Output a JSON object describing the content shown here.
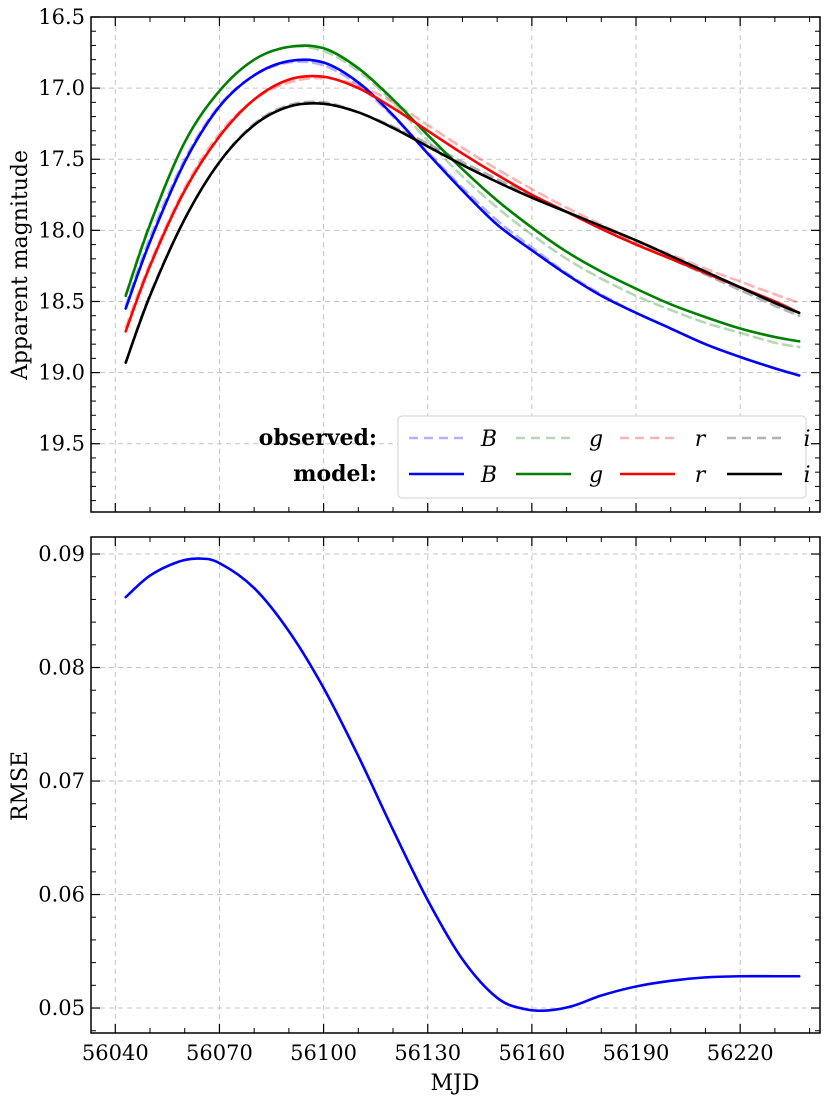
{
  "chart_data": [
    {
      "type": "line",
      "panel": "top",
      "xlabel": "",
      "ylabel": "Apparent magnitude",
      "xlim": [
        56033,
        56243
      ],
      "ylim": [
        19.98,
        16.5
      ],
      "y_inverted": true,
      "xticks": [
        56040,
        56070,
        56100,
        56130,
        56160,
        56190,
        56220
      ],
      "xticks_labeled": false,
      "yticks": [
        16.5,
        17.0,
        17.5,
        18.0,
        18.5,
        19.0,
        19.5
      ],
      "ytick_labels": [
        "16.5",
        "17.0",
        "17.5",
        "18.0",
        "18.5",
        "19.0",
        "19.5"
      ],
      "grid": true,
      "legend": {
        "placement": "lower-right",
        "row_labels": [
          "observed:",
          "model:"
        ],
        "bands": [
          "B",
          "g",
          "r",
          "i"
        ]
      },
      "x": [
        56043,
        56050,
        56060,
        56070,
        56080,
        56090,
        56100,
        56110,
        56120,
        56130,
        56140,
        56150,
        56160,
        56170,
        56180,
        56190,
        56200,
        56210,
        56220,
        56230,
        56237
      ],
      "series": [
        {
          "name": "B",
          "kind": "observed",
          "color": "#0000ff",
          "values": [
            18.53,
            18.05,
            17.5,
            17.12,
            16.91,
            16.82,
            16.84,
            16.98,
            17.2,
            17.45,
            17.7,
            17.93,
            18.12,
            18.3,
            18.45,
            18.58,
            18.69,
            18.8,
            18.89,
            18.97,
            19.02
          ]
        },
        {
          "name": "g",
          "kind": "observed",
          "color": "#008000",
          "values": [
            18.45,
            17.95,
            17.38,
            17.02,
            16.8,
            16.71,
            16.74,
            16.88,
            17.1,
            17.37,
            17.62,
            17.84,
            18.03,
            18.2,
            18.34,
            18.46,
            18.56,
            18.65,
            18.72,
            18.79,
            18.82
          ]
        },
        {
          "name": "r",
          "kind": "observed",
          "color": "#ff0000",
          "values": [
            18.68,
            18.23,
            17.7,
            17.32,
            17.08,
            16.96,
            16.93,
            16.98,
            17.1,
            17.26,
            17.42,
            17.57,
            17.71,
            17.84,
            17.96,
            18.07,
            18.17,
            18.27,
            18.36,
            18.45,
            18.51
          ]
        },
        {
          "name": "i",
          "kind": "observed",
          "color": "#000000",
          "values": [
            18.93,
            18.45,
            17.92,
            17.52,
            17.25,
            17.12,
            17.1,
            17.17,
            17.27,
            17.39,
            17.52,
            17.64,
            17.76,
            17.87,
            17.98,
            18.09,
            18.2,
            18.31,
            18.42,
            18.53,
            18.6
          ]
        },
        {
          "name": "B",
          "kind": "model",
          "color": "#0000ff",
          "values": [
            18.55,
            18.08,
            17.52,
            17.13,
            16.91,
            16.81,
            16.82,
            16.96,
            17.19,
            17.46,
            17.72,
            17.96,
            18.14,
            18.31,
            18.46,
            18.58,
            18.69,
            18.8,
            18.89,
            18.97,
            19.02
          ]
        },
        {
          "name": "g",
          "kind": "model",
          "color": "#008000",
          "values": [
            18.46,
            17.96,
            17.38,
            17.02,
            16.8,
            16.71,
            16.72,
            16.86,
            17.08,
            17.33,
            17.57,
            17.79,
            17.98,
            18.15,
            18.29,
            18.41,
            18.52,
            18.61,
            18.69,
            18.75,
            18.78
          ]
        },
        {
          "name": "r",
          "kind": "model",
          "color": "#ff0000",
          "values": [
            18.71,
            18.25,
            17.72,
            17.34,
            17.08,
            16.94,
            16.92,
            17.0,
            17.14,
            17.3,
            17.46,
            17.61,
            17.75,
            17.87,
            17.99,
            18.1,
            18.2,
            18.3,
            18.4,
            18.5,
            18.58
          ]
        },
        {
          "name": "i",
          "kind": "model",
          "color": "#000000",
          "values": [
            18.93,
            18.46,
            17.92,
            17.52,
            17.26,
            17.13,
            17.11,
            17.17,
            17.28,
            17.41,
            17.54,
            17.66,
            17.77,
            17.87,
            17.97,
            18.07,
            18.18,
            18.29,
            18.4,
            18.51,
            18.58
          ]
        }
      ]
    },
    {
      "type": "line",
      "panel": "bottom",
      "xlabel": "MJD",
      "ylabel": "RMSE",
      "xlim": [
        56033,
        56243
      ],
      "ylim": [
        0.0478,
        0.0915
      ],
      "xticks": [
        56040,
        56070,
        56100,
        56130,
        56160,
        56190,
        56220
      ],
      "xtick_labels": [
        "56040",
        "56070",
        "56100",
        "56130",
        "56160",
        "56190",
        "56220"
      ],
      "yticks": [
        0.05,
        0.06,
        0.07,
        0.08,
        0.09
      ],
      "ytick_labels": [
        "0.05",
        "0.06",
        "0.07",
        "0.08",
        "0.09"
      ],
      "grid": true,
      "x": [
        56043,
        56050,
        56058,
        56064,
        56070,
        56080,
        56090,
        56100,
        56110,
        56120,
        56130,
        56140,
        56150,
        56158,
        56165,
        56172,
        56180,
        56190,
        56200,
        56210,
        56220,
        56230,
        56237
      ],
      "series": [
        {
          "name": "RMSE",
          "color": "#0000ff",
          "values": [
            0.0862,
            0.0881,
            0.0893,
            0.0896,
            0.0892,
            0.087,
            0.0832,
            0.0782,
            0.0722,
            0.0657,
            0.0595,
            0.0543,
            0.0509,
            0.0499,
            0.0498,
            0.0502,
            0.0511,
            0.0519,
            0.0524,
            0.0527,
            0.0528,
            0.0528,
            0.0528
          ]
        }
      ]
    }
  ]
}
